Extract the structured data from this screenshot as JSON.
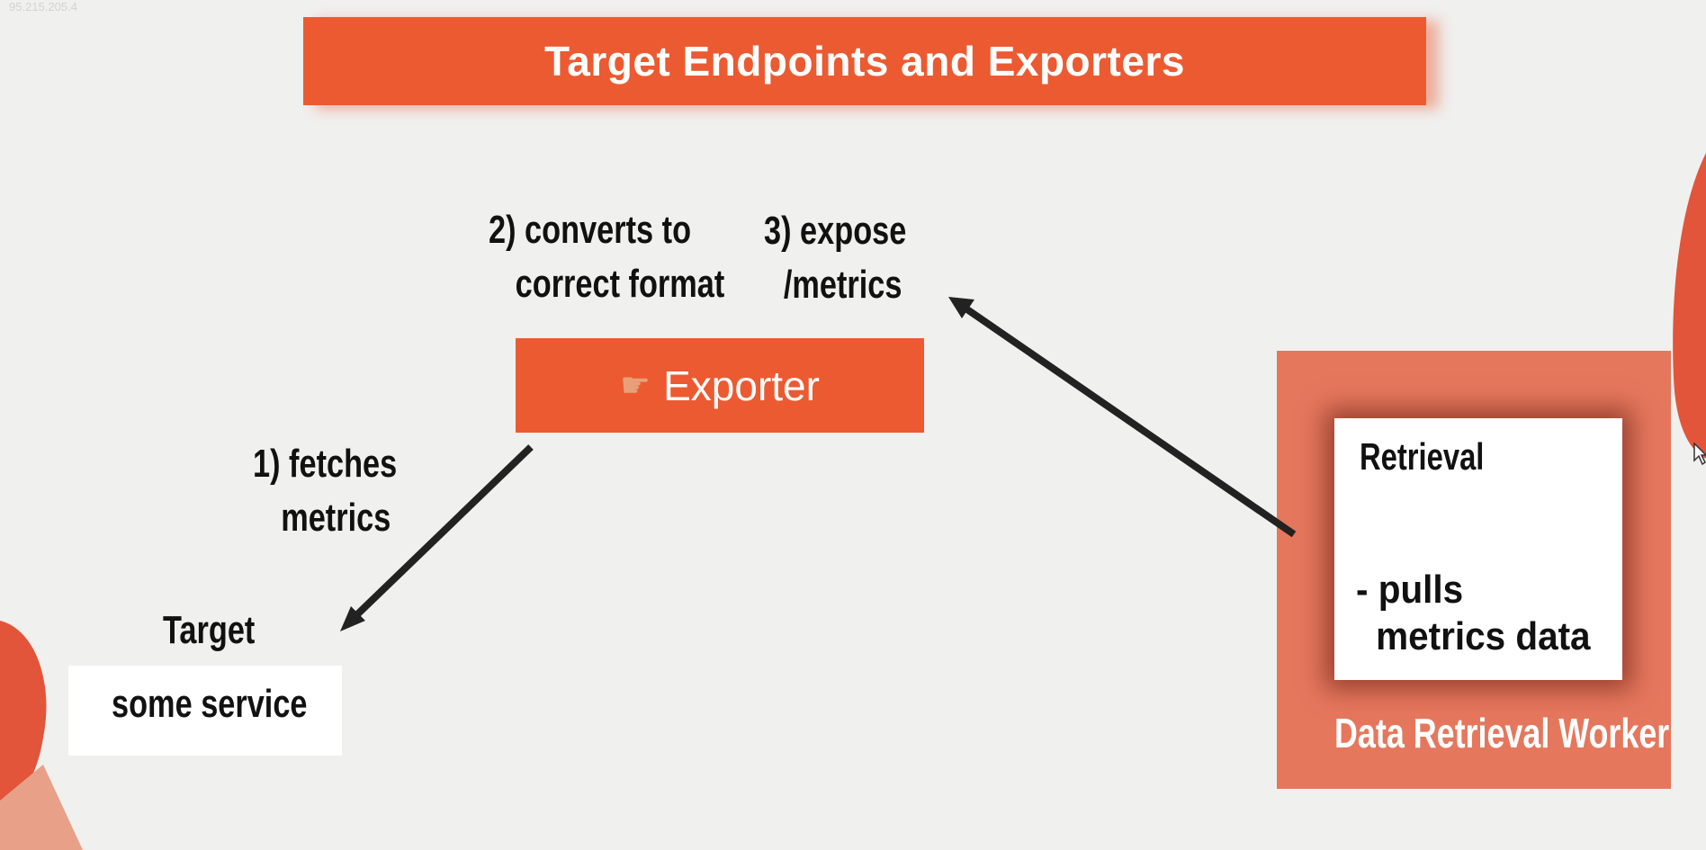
{
  "overlay": {
    "ip": "95.215.205.4"
  },
  "header": {
    "title": "Target Endpoints and Exporters"
  },
  "steps": {
    "fetch": {
      "line1": "1) fetches",
      "line2": "metrics"
    },
    "convert": {
      "line1": "2) converts to",
      "line2": "correct format"
    },
    "expose": {
      "line1": "3) expose",
      "line2": "/metrics"
    }
  },
  "exporter": {
    "icon": "pointing-hand-icon",
    "label": "Exporter"
  },
  "target": {
    "label": "Target",
    "service": "some service"
  },
  "worker": {
    "retrieval_title": "Retrieval",
    "pulls_line1": "- pulls",
    "pulls_line2": "metrics data",
    "label": "Data Retrieval Worker"
  },
  "colors": {
    "accent": "#ec5a31",
    "worker_bg": "#e5775d",
    "background": "#f0f0ef",
    "arrow": "#222222"
  }
}
